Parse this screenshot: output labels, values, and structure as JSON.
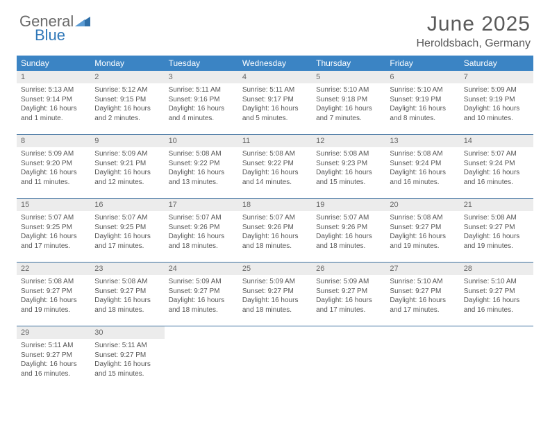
{
  "logo": {
    "text_gray": "General",
    "text_blue": "Blue",
    "triangle_color": "#2f6fa8"
  },
  "header": {
    "month_title": "June 2025",
    "location": "Heroldsbach, Germany"
  },
  "colors": {
    "header_bg": "#3b84c4",
    "header_text": "#ffffff",
    "daynum_bg": "#ececec",
    "daynum_text": "#666666",
    "body_text": "#555555",
    "row_border": "#3b6f9e"
  },
  "weekdays": [
    "Sunday",
    "Monday",
    "Tuesday",
    "Wednesday",
    "Thursday",
    "Friday",
    "Saturday"
  ],
  "weeks": [
    [
      {
        "num": "1",
        "sunrise": "Sunrise: 5:13 AM",
        "sunset": "Sunset: 9:14 PM",
        "daylight": "Daylight: 16 hours and 1 minute."
      },
      {
        "num": "2",
        "sunrise": "Sunrise: 5:12 AM",
        "sunset": "Sunset: 9:15 PM",
        "daylight": "Daylight: 16 hours and 2 minutes."
      },
      {
        "num": "3",
        "sunrise": "Sunrise: 5:11 AM",
        "sunset": "Sunset: 9:16 PM",
        "daylight": "Daylight: 16 hours and 4 minutes."
      },
      {
        "num": "4",
        "sunrise": "Sunrise: 5:11 AM",
        "sunset": "Sunset: 9:17 PM",
        "daylight": "Daylight: 16 hours and 5 minutes."
      },
      {
        "num": "5",
        "sunrise": "Sunrise: 5:10 AM",
        "sunset": "Sunset: 9:18 PM",
        "daylight": "Daylight: 16 hours and 7 minutes."
      },
      {
        "num": "6",
        "sunrise": "Sunrise: 5:10 AM",
        "sunset": "Sunset: 9:19 PM",
        "daylight": "Daylight: 16 hours and 8 minutes."
      },
      {
        "num": "7",
        "sunrise": "Sunrise: 5:09 AM",
        "sunset": "Sunset: 9:19 PM",
        "daylight": "Daylight: 16 hours and 10 minutes."
      }
    ],
    [
      {
        "num": "8",
        "sunrise": "Sunrise: 5:09 AM",
        "sunset": "Sunset: 9:20 PM",
        "daylight": "Daylight: 16 hours and 11 minutes."
      },
      {
        "num": "9",
        "sunrise": "Sunrise: 5:09 AM",
        "sunset": "Sunset: 9:21 PM",
        "daylight": "Daylight: 16 hours and 12 minutes."
      },
      {
        "num": "10",
        "sunrise": "Sunrise: 5:08 AM",
        "sunset": "Sunset: 9:22 PM",
        "daylight": "Daylight: 16 hours and 13 minutes."
      },
      {
        "num": "11",
        "sunrise": "Sunrise: 5:08 AM",
        "sunset": "Sunset: 9:22 PM",
        "daylight": "Daylight: 16 hours and 14 minutes."
      },
      {
        "num": "12",
        "sunrise": "Sunrise: 5:08 AM",
        "sunset": "Sunset: 9:23 PM",
        "daylight": "Daylight: 16 hours and 15 minutes."
      },
      {
        "num": "13",
        "sunrise": "Sunrise: 5:08 AM",
        "sunset": "Sunset: 9:24 PM",
        "daylight": "Daylight: 16 hours and 16 minutes."
      },
      {
        "num": "14",
        "sunrise": "Sunrise: 5:07 AM",
        "sunset": "Sunset: 9:24 PM",
        "daylight": "Daylight: 16 hours and 16 minutes."
      }
    ],
    [
      {
        "num": "15",
        "sunrise": "Sunrise: 5:07 AM",
        "sunset": "Sunset: 9:25 PM",
        "daylight": "Daylight: 16 hours and 17 minutes."
      },
      {
        "num": "16",
        "sunrise": "Sunrise: 5:07 AM",
        "sunset": "Sunset: 9:25 PM",
        "daylight": "Daylight: 16 hours and 17 minutes."
      },
      {
        "num": "17",
        "sunrise": "Sunrise: 5:07 AM",
        "sunset": "Sunset: 9:26 PM",
        "daylight": "Daylight: 16 hours and 18 minutes."
      },
      {
        "num": "18",
        "sunrise": "Sunrise: 5:07 AM",
        "sunset": "Sunset: 9:26 PM",
        "daylight": "Daylight: 16 hours and 18 minutes."
      },
      {
        "num": "19",
        "sunrise": "Sunrise: 5:07 AM",
        "sunset": "Sunset: 9:26 PM",
        "daylight": "Daylight: 16 hours and 18 minutes."
      },
      {
        "num": "20",
        "sunrise": "Sunrise: 5:08 AM",
        "sunset": "Sunset: 9:27 PM",
        "daylight": "Daylight: 16 hours and 19 minutes."
      },
      {
        "num": "21",
        "sunrise": "Sunrise: 5:08 AM",
        "sunset": "Sunset: 9:27 PM",
        "daylight": "Daylight: 16 hours and 19 minutes."
      }
    ],
    [
      {
        "num": "22",
        "sunrise": "Sunrise: 5:08 AM",
        "sunset": "Sunset: 9:27 PM",
        "daylight": "Daylight: 16 hours and 19 minutes."
      },
      {
        "num": "23",
        "sunrise": "Sunrise: 5:08 AM",
        "sunset": "Sunset: 9:27 PM",
        "daylight": "Daylight: 16 hours and 18 minutes."
      },
      {
        "num": "24",
        "sunrise": "Sunrise: 5:09 AM",
        "sunset": "Sunset: 9:27 PM",
        "daylight": "Daylight: 16 hours and 18 minutes."
      },
      {
        "num": "25",
        "sunrise": "Sunrise: 5:09 AM",
        "sunset": "Sunset: 9:27 PM",
        "daylight": "Daylight: 16 hours and 18 minutes."
      },
      {
        "num": "26",
        "sunrise": "Sunrise: 5:09 AM",
        "sunset": "Sunset: 9:27 PM",
        "daylight": "Daylight: 16 hours and 17 minutes."
      },
      {
        "num": "27",
        "sunrise": "Sunrise: 5:10 AM",
        "sunset": "Sunset: 9:27 PM",
        "daylight": "Daylight: 16 hours and 17 minutes."
      },
      {
        "num": "28",
        "sunrise": "Sunrise: 5:10 AM",
        "sunset": "Sunset: 9:27 PM",
        "daylight": "Daylight: 16 hours and 16 minutes."
      }
    ],
    [
      {
        "num": "29",
        "sunrise": "Sunrise: 5:11 AM",
        "sunset": "Sunset: 9:27 PM",
        "daylight": "Daylight: 16 hours and 16 minutes."
      },
      {
        "num": "30",
        "sunrise": "Sunrise: 5:11 AM",
        "sunset": "Sunset: 9:27 PM",
        "daylight": "Daylight: 16 hours and 15 minutes."
      },
      null,
      null,
      null,
      null,
      null
    ]
  ]
}
